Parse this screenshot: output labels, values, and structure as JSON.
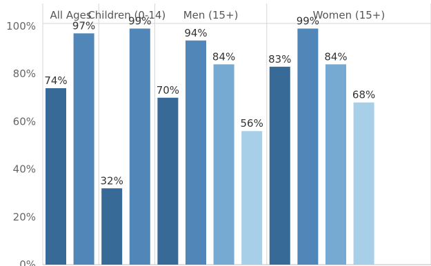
{
  "chart_data": {
    "type": "bar",
    "colors": [
      "#376a96",
      "#5187b8",
      "#77aad3",
      "#a8cfe8"
    ],
    "ylim": [
      0,
      100
    ],
    "yticks": [
      "0%",
      "20%",
      "40%",
      "60%",
      "80%",
      "100%"
    ],
    "grid": false,
    "panes": [
      {
        "name": "All Ages",
        "values": [
          74,
          97
        ],
        "labels": [
          "74%",
          "97%"
        ]
      },
      {
        "name": "Children (0-14)",
        "values": [
          32,
          99
        ],
        "labels": [
          "32%",
          "99%"
        ]
      },
      {
        "name": "Men (15+)",
        "values": [
          70,
          94,
          84,
          56
        ],
        "labels": [
          "70%",
          "94%",
          "84%",
          "56%"
        ]
      },
      {
        "name": "Women (15+)",
        "values": [
          83,
          99,
          84,
          68
        ],
        "labels": [
          "83%",
          "99%",
          "84%",
          "68%"
        ]
      }
    ]
  }
}
